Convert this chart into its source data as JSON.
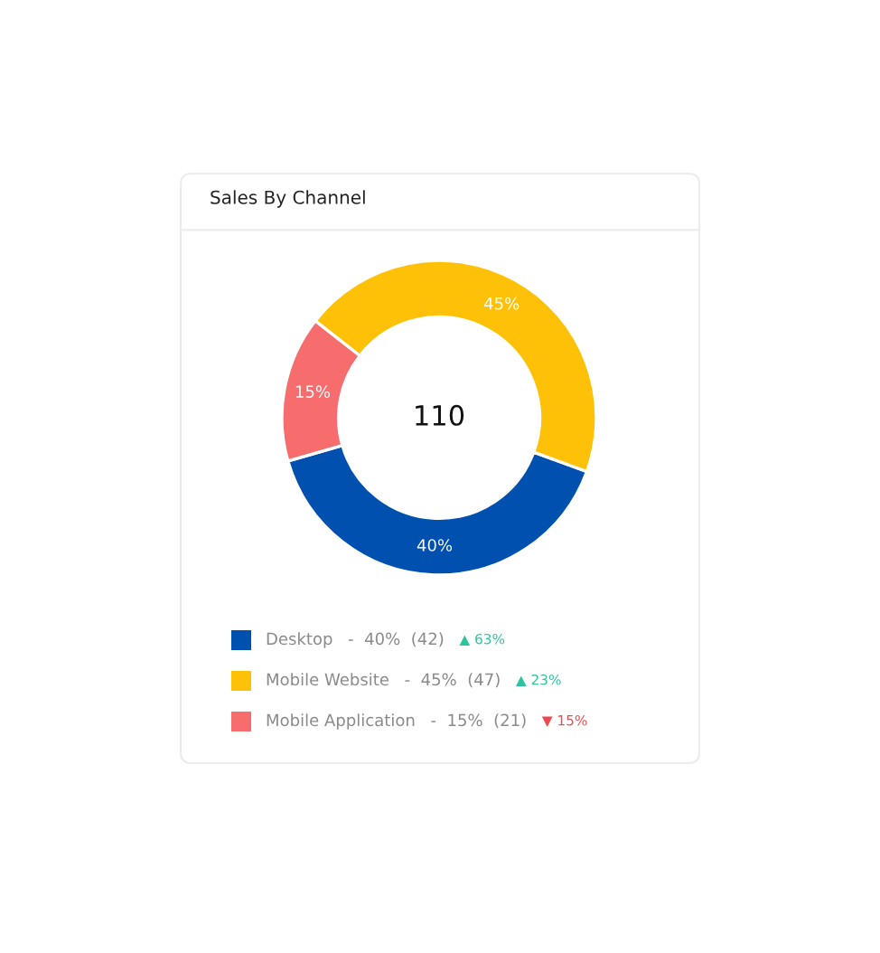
{
  "chart_data": {
    "type": "donut",
    "title": "Sales By Channel",
    "categories": [
      "Desktop",
      "Mobile Website",
      "Mobile Application"
    ],
    "values": [
      40,
      45,
      15
    ],
    "colors": [
      "#0050b0",
      "#ffc107",
      "#f76c6c"
    ],
    "value_labels": [
      "40%",
      "45%",
      "15%"
    ],
    "legend": "bottom",
    "annotations": [
      "110",
      "-  40%  (42)",
      "▲ 63%",
      "-  45%  (47)",
      "▲ 23%",
      "-  15%  (21)",
      "▼ 15%"
    ]
  }
}
